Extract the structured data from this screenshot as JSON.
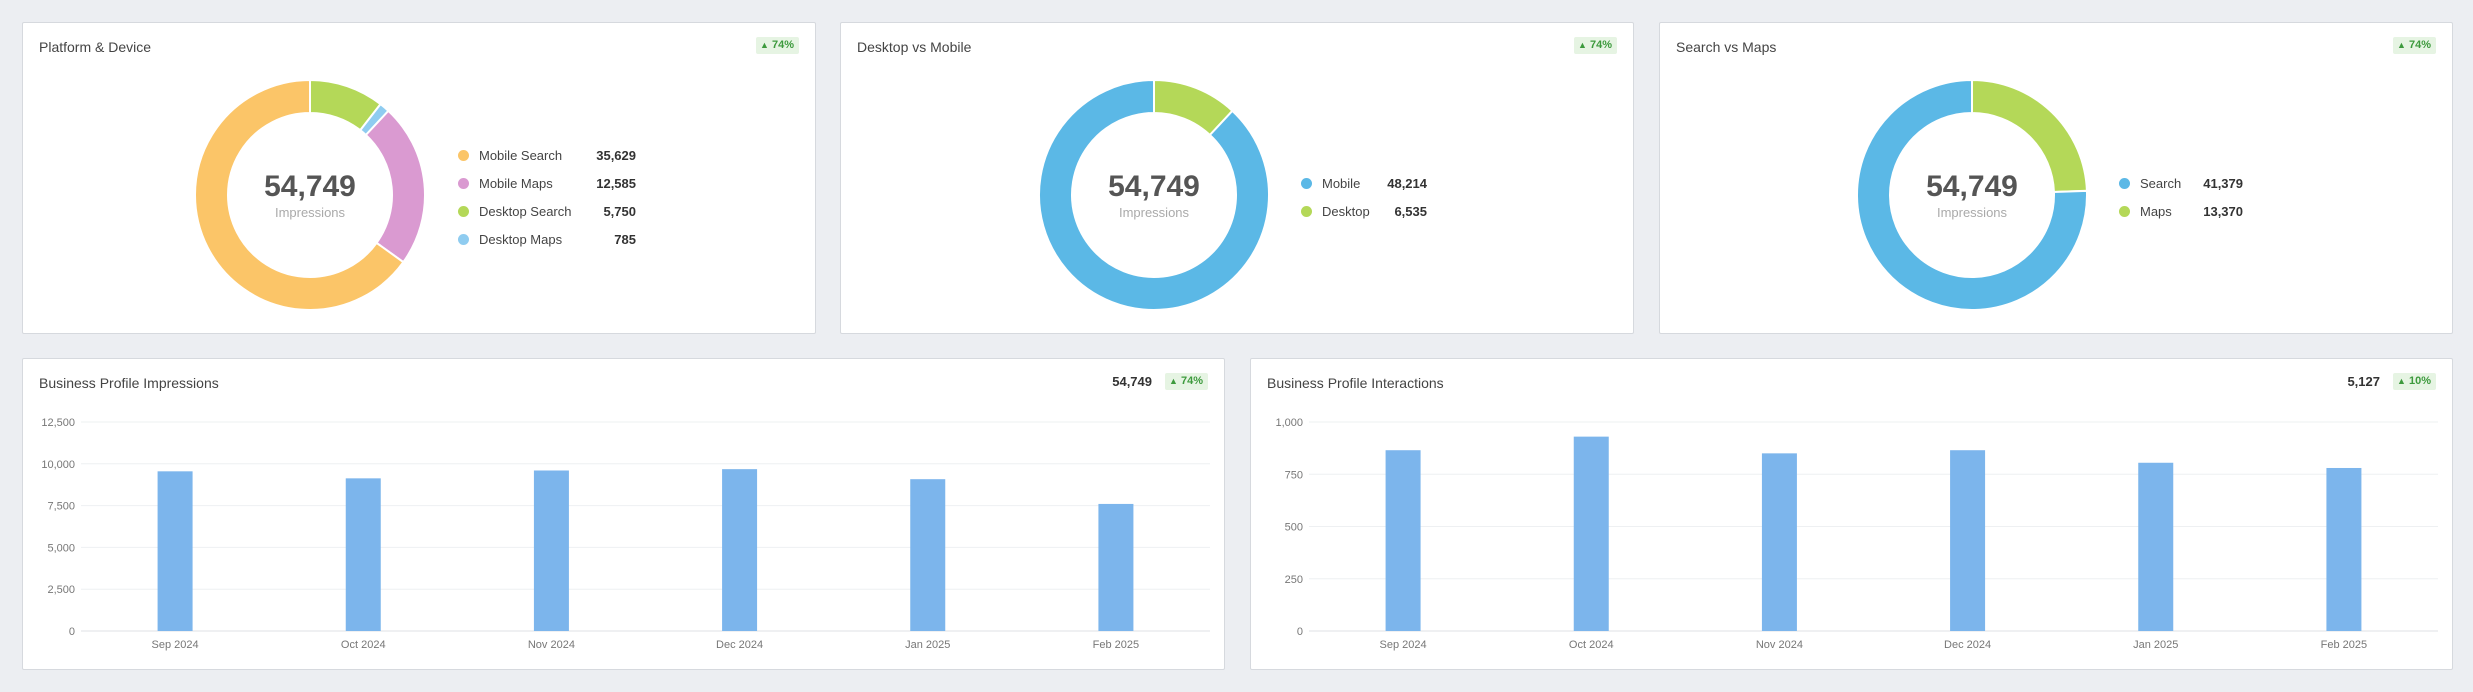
{
  "colors": {
    "mobile_search": "#fbc568",
    "mobile_maps": "#da9ad1",
    "desktop_search": "#b4d858",
    "desktop_maps": "#8fccf0",
    "blue_large": "#5bb8e6",
    "green": "#b4d858",
    "bar": "#7cb5ec",
    "badge_bg": "#e6f4e3",
    "badge_text": "#3d9a3d"
  },
  "platform_device": {
    "title": "Platform & Device",
    "badge": "74%",
    "center_value": "54,749",
    "center_label": "Impressions",
    "legend": [
      {
        "name": "Mobile Search",
        "value": "35,629"
      },
      {
        "name": "Mobile Maps",
        "value": "12,585"
      },
      {
        "name": "Desktop Search",
        "value": "5,750"
      },
      {
        "name": "Desktop Maps",
        "value": "785"
      }
    ]
  },
  "desktop_mobile": {
    "title": "Desktop vs Mobile",
    "badge": "74%",
    "center_value": "54,749",
    "center_label": "Impressions",
    "legend": [
      {
        "name": "Mobile",
        "value": "48,214"
      },
      {
        "name": "Desktop",
        "value": "6,535"
      }
    ]
  },
  "search_maps": {
    "title": "Search vs Maps",
    "badge": "74%",
    "center_value": "54,749",
    "center_label": "Impressions",
    "legend": [
      {
        "name": "Search",
        "value": "41,379"
      },
      {
        "name": "Maps",
        "value": "13,370"
      }
    ]
  },
  "impressions": {
    "title": "Business Profile Impressions",
    "total": "54,749",
    "badge": "74%"
  },
  "interactions": {
    "title": "Business Profile Interactions",
    "total": "5,127",
    "badge": "10%"
  },
  "chart_data": [
    {
      "type": "pie",
      "categories": [
        "Mobile Search",
        "Mobile Maps",
        "Desktop Search",
        "Desktop Maps"
      ],
      "values": [
        35629,
        12585,
        5750,
        785
      ]
    },
    {
      "type": "pie",
      "categories": [
        "Mobile",
        "Desktop"
      ],
      "values": [
        48214,
        6535
      ]
    },
    {
      "type": "pie",
      "categories": [
        "Search",
        "Maps"
      ],
      "values": [
        41379,
        13370
      ]
    },
    {
      "type": "bar",
      "title": "Business Profile Impressions",
      "categories": [
        "Sep 2024",
        "Oct 2024",
        "Nov 2024",
        "Dec 2024",
        "Jan 2025",
        "Feb 2025"
      ],
      "values": [
        9550,
        9130,
        9600,
        9680,
        9080,
        7600
      ],
      "ylim": [
        0,
        12500
      ],
      "yticks": [
        0,
        2500,
        5000,
        7500,
        10000,
        12500
      ],
      "ytick_labels": [
        "0",
        "2,500",
        "5,000",
        "7,500",
        "10,000",
        "12,500"
      ],
      "grid": true
    },
    {
      "type": "bar",
      "title": "Business Profile Interactions",
      "categories": [
        "Sep 2024",
        "Oct 2024",
        "Nov 2024",
        "Dec 2024",
        "Jan 2025",
        "Feb 2025"
      ],
      "values": [
        865,
        930,
        850,
        865,
        805,
        780
      ],
      "ylim": [
        0,
        1000
      ],
      "yticks": [
        0,
        250,
        500,
        750,
        1000
      ],
      "ytick_labels": [
        "0",
        "250",
        "500",
        "750",
        "1,000"
      ],
      "grid": true
    }
  ]
}
